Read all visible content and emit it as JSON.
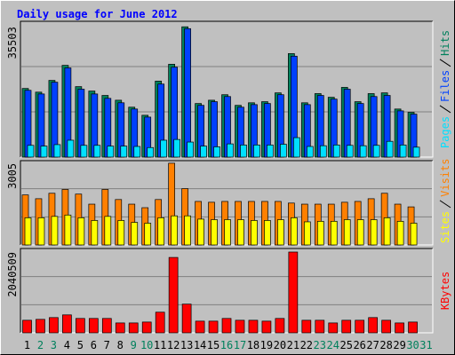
{
  "chart_data": [
    {
      "type": "bar",
      "title": "Daily usage for June 2012",
      "series": [
        {
          "name": "Hits",
          "color": "#00805c",
          "values": [
            18700,
            17700,
            20900,
            25000,
            19200,
            18000,
            16800,
            15500,
            13600,
            11400,
            20700,
            25300,
            35503,
            14600,
            15500,
            17000,
            14100,
            14800,
            15100,
            17500,
            28200,
            14800,
            17300,
            16300,
            19000,
            15100,
            17300,
            17500,
            13100,
            12200,
            null
          ]
        },
        {
          "name": "Files",
          "color": "#0040ff",
          "values": [
            18200,
            17200,
            20400,
            24300,
            18500,
            17200,
            16000,
            14800,
            13100,
            10900,
            19900,
            24500,
            35000,
            14100,
            15100,
            16500,
            13600,
            14300,
            14600,
            17000,
            27500,
            14300,
            16800,
            15800,
            18500,
            14600,
            16500,
            16800,
            12600,
            11700,
            null
          ]
        },
        {
          "name": "Pages",
          "color": "#00e0ff",
          "values": [
            3200,
            3000,
            3400,
            4600,
            3200,
            3200,
            3000,
            3000,
            2900,
            2600,
            4600,
            4800,
            4100,
            3000,
            2800,
            3600,
            3300,
            3300,
            3300,
            3500,
            5300,
            2900,
            3100,
            3300,
            3200,
            3100,
            3200,
            4300,
            3300,
            2700,
            null
          ]
        }
      ],
      "ylim": [
        0,
        37000
      ],
      "yticks": [
        35503
      ]
    },
    {
      "type": "bar",
      "series": [
        {
          "name": "Visits",
          "color": "#ff8000",
          "values": [
            1840,
            1700,
            1900,
            2040,
            1870,
            1500,
            2040,
            1670,
            1500,
            1370,
            1670,
            3005,
            2070,
            1600,
            1570,
            1600,
            1600,
            1600,
            1600,
            1600,
            1540,
            1500,
            1500,
            1500,
            1570,
            1600,
            1700,
            1900,
            1500,
            1400,
            null
          ]
        },
        {
          "name": "Sites",
          "color": "#ffff00",
          "values": [
            1000,
            1000,
            1050,
            1100,
            1000,
            900,
            1050,
            900,
            830,
            800,
            1000,
            1070,
            1070,
            950,
            930,
            930,
            930,
            900,
            900,
            930,
            1000,
            850,
            870,
            870,
            930,
            930,
            930,
            1000,
            870,
            800,
            null
          ]
        }
      ],
      "ylim": [
        0,
        3100
      ],
      "yticks": [
        3005
      ]
    },
    {
      "type": "bar",
      "categories": [
        "1",
        "2",
        "3",
        "4",
        "5",
        "6",
        "7",
        "8",
        "9",
        "10",
        "11",
        "12",
        "13",
        "14",
        "15",
        "16",
        "17",
        "18",
        "19",
        "20",
        "21",
        "22",
        "23",
        "24",
        "25",
        "26",
        "27",
        "28",
        "29",
        "30",
        "31"
      ],
      "category_colors": [
        "#000000",
        "#00805c",
        "#00805c",
        "#000000",
        "#000000",
        "#000000",
        "#000000",
        "#000000",
        "#00805c",
        "#00805c",
        "#000000",
        "#000000",
        "#000000",
        "#000000",
        "#000000",
        "#00805c",
        "#00805c",
        "#000000",
        "#000000",
        "#000000",
        "#000000",
        "#000000",
        "#00805c",
        "#00805c",
        "#000000",
        "#000000",
        "#000000",
        "#000000",
        "#000000",
        "#00805c",
        "#00805c"
      ],
      "series": [
        {
          "name": "KBytes",
          "color": "#ff0000",
          "values": [
            317000,
            340000,
            385000,
            453000,
            363000,
            363000,
            363000,
            249000,
            249000,
            272000,
            521000,
            1904000,
            725000,
            295000,
            295000,
            363000,
            317000,
            317000,
            295000,
            363000,
            2040509,
            317000,
            317000,
            249000,
            317000,
            317000,
            385000,
            317000,
            249000,
            272000,
            null
          ]
        }
      ],
      "ylim": [
        0,
        2130000
      ],
      "yticks": [
        2040509
      ]
    }
  ]
}
